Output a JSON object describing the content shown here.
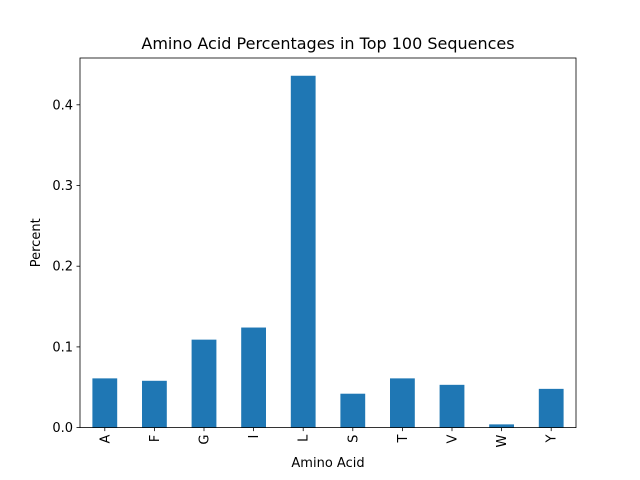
{
  "chart_data": {
    "type": "bar",
    "title": "Amino Acid Percentages in Top 100 Sequences",
    "xlabel": "Amino Acid",
    "ylabel": "Percent",
    "categories": [
      "A",
      "F",
      "G",
      "I",
      "L",
      "S",
      "T",
      "V",
      "W",
      "Y"
    ],
    "values": [
      0.061,
      0.058,
      0.109,
      0.124,
      0.436,
      0.042,
      0.061,
      0.053,
      0.004,
      0.048
    ],
    "ylim": [
      0,
      0.458
    ],
    "yticks": [
      "0.0",
      "0.1",
      "0.2",
      "0.3",
      "0.4"
    ],
    "grid": false,
    "bar_color": "#1f77b4"
  }
}
